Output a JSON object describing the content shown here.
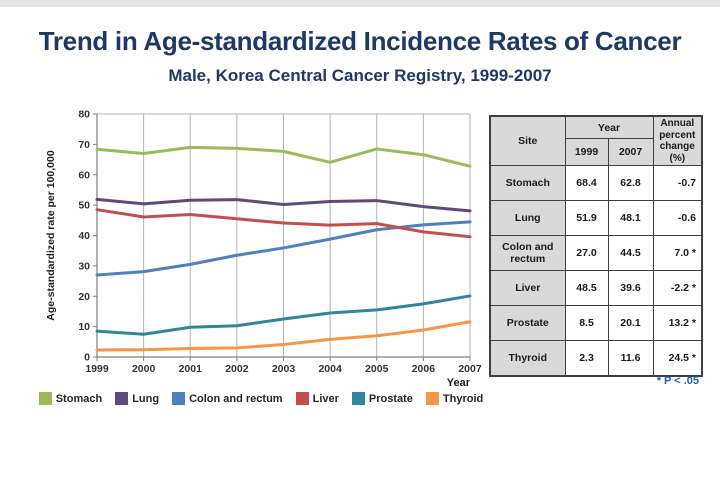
{
  "slide": {
    "title": "Trend in Age-standardized Incidence Rates of Cancer",
    "subtitle": "Male, Korea Central Cancer Registry, 1999-2007"
  },
  "chart_data": {
    "type": "line",
    "x": [
      1999,
      2000,
      2001,
      2002,
      2003,
      2004,
      2005,
      2006,
      2007
    ],
    "series": [
      {
        "name": "Stomach",
        "color": "#9bbb59",
        "values": [
          68.4,
          67.0,
          69.0,
          68.7,
          67.7,
          64.1,
          68.5,
          66.6,
          62.8
        ]
      },
      {
        "name": "Lung",
        "color": "#604a7b",
        "values": [
          51.9,
          50.4,
          51.6,
          51.8,
          50.2,
          51.2,
          51.5,
          49.5,
          48.1
        ]
      },
      {
        "name": "Colon and rectum",
        "color": "#4f81bd",
        "values": [
          27.0,
          28.1,
          30.5,
          33.5,
          35.9,
          38.8,
          41.9,
          43.5,
          44.5
        ]
      },
      {
        "name": "Liver",
        "color": "#c0504d",
        "values": [
          48.5,
          46.1,
          46.9,
          45.5,
          44.1,
          43.4,
          43.9,
          41.2,
          39.6
        ]
      },
      {
        "name": "Prostate",
        "color": "#31859c",
        "values": [
          8.5,
          7.5,
          9.8,
          10.3,
          12.5,
          14.5,
          15.5,
          17.5,
          20.1
        ]
      },
      {
        "name": "Thyroid",
        "color": "#f79646",
        "values": [
          2.3,
          2.4,
          2.8,
          3.0,
          4.1,
          5.8,
          7.0,
          8.9,
          11.6
        ]
      }
    ],
    "title": "",
    "xlabel": "Year",
    "ylabel": "Age-standardized rate per 100,000",
    "ylim": [
      0,
      80
    ],
    "yticks": [
      0,
      10,
      20,
      30,
      40,
      50,
      60,
      70,
      80
    ],
    "grid": "vertical-only",
    "legend_position": "bottom"
  },
  "table": {
    "header": {
      "site": "Site",
      "year": "Year",
      "col_1999": "1999",
      "col_2007": "2007",
      "apc": "Annual percent change (%)"
    },
    "rows": [
      {
        "site": "Stomach",
        "y1999": "68.4",
        "y2007": "62.8",
        "apc": "-0.7"
      },
      {
        "site": "Lung",
        "y1999": "51.9",
        "y2007": "48.1",
        "apc": "-0.6"
      },
      {
        "site": "Colon and rectum",
        "y1999": "27.0",
        "y2007": "44.5",
        "apc": "7.0 *"
      },
      {
        "site": "Liver",
        "y1999": "48.5",
        "y2007": "39.6",
        "apc": "-2.2 *"
      },
      {
        "site": "Prostate",
        "y1999": "8.5",
        "y2007": "20.1",
        "apc": "13.2 *"
      },
      {
        "site": "Thyroid",
        "y1999": "2.3",
        "y2007": "11.6",
        "apc": "24.5 *"
      }
    ],
    "footnote": "* P < .05"
  },
  "colors": {
    "title_text": "#1f3864",
    "footnote_text": "#1f5ea8",
    "table_header_bg": "#d9d9d9",
    "gridline": "#b3b3b3",
    "axis": "#808080"
  }
}
